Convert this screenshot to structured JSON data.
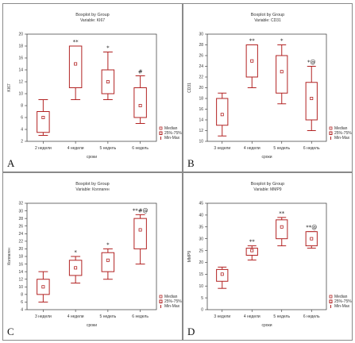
{
  "chart_data": [
    {
      "panel_letter": "A",
      "type": "box",
      "title": "Boxplot by Group",
      "subtitle": "Variable: KI67",
      "xlabel": "сроки",
      "ylabel": "KI67",
      "ylim": [
        2,
        20
      ],
      "yticks": [
        2,
        4,
        6,
        8,
        10,
        12,
        14,
        16,
        18,
        20
      ],
      "categories": [
        "2 недели",
        "4 недели",
        "5 недель",
        "6 недель"
      ],
      "boxes": [
        {
          "median": 6,
          "q1": 3.5,
          "q3": 7,
          "min": 3,
          "max": 9,
          "mark": ""
        },
        {
          "median": 15,
          "q1": 11,
          "q3": 18,
          "min": 9,
          "max": 18,
          "mark": "**"
        },
        {
          "median": 12,
          "q1": 10,
          "q3": 14,
          "min": 9,
          "max": 17,
          "mark": "*"
        },
        {
          "median": 8,
          "q1": 6,
          "q3": 11,
          "min": 5,
          "max": 13,
          "mark": "#"
        }
      ],
      "legend": [
        "Median",
        "25%-75%",
        "Min-Max"
      ]
    },
    {
      "panel_letter": "B",
      "type": "box",
      "title": "Boxplot by Group",
      "subtitle": "Variable: CD31",
      "xlabel": "сроки",
      "ylabel": "CD31",
      "ylim": [
        10,
        30
      ],
      "yticks": [
        10,
        12,
        14,
        16,
        18,
        20,
        22,
        24,
        26,
        28,
        30
      ],
      "categories": [
        "3 недели",
        "4 недели",
        "5 недель",
        "6 недель"
      ],
      "boxes": [
        {
          "median": 15,
          "q1": 13,
          "q3": 18,
          "min": 11,
          "max": 19,
          "mark": ""
        },
        {
          "median": 25,
          "q1": 22,
          "q3": 28,
          "min": 20,
          "max": 28,
          "mark": "**"
        },
        {
          "median": 23,
          "q1": 19,
          "q3": 26,
          "min": 17,
          "max": 28,
          "mark": "*"
        },
        {
          "median": 18,
          "q1": 14,
          "q3": 21,
          "min": 12,
          "max": 24,
          "mark": "*@"
        }
      ],
      "legend": [
        "Median",
        "25%-75%",
        "Min-Max"
      ]
    },
    {
      "panel_letter": "C",
      "type": "box",
      "title": "Boxplot by Group",
      "subtitle": "Variable: Коллаген",
      "xlabel": "сроки",
      "ylabel": "Коллаген",
      "ylim": [
        4,
        32
      ],
      "yticks": [
        4,
        6,
        8,
        10,
        12,
        14,
        16,
        18,
        20,
        22,
        24,
        26,
        28,
        30,
        32
      ],
      "categories": [
        "3 недели",
        "4 недели",
        "5 недель",
        "6 недель"
      ],
      "boxes": [
        {
          "median": 10,
          "q1": 8,
          "q3": 12,
          "min": 6,
          "max": 14,
          "mark": ""
        },
        {
          "median": 15,
          "q1": 13,
          "q3": 17,
          "min": 11,
          "max": 18,
          "mark": "*"
        },
        {
          "median": 17,
          "q1": 14,
          "q3": 19,
          "min": 12,
          "max": 20,
          "mark": "*"
        },
        {
          "median": 25,
          "q1": 20,
          "q3": 28,
          "min": 16,
          "max": 29,
          "mark": "**#@"
        }
      ],
      "legend": [
        "Median",
        "25%-75%",
        "Min-Max"
      ]
    },
    {
      "panel_letter": "D",
      "type": "box",
      "title": "Boxplot by Group",
      "subtitle": "Variable: MMP9",
      "xlabel": "сроки",
      "ylabel": "MMP9",
      "ylim": [
        0,
        45
      ],
      "yticks": [
        0,
        5,
        10,
        15,
        20,
        25,
        30,
        35,
        40,
        45
      ],
      "categories": [
        "3 недели",
        "4 недели",
        "5 недель",
        "6 недель"
      ],
      "boxes": [
        {
          "median": 15,
          "q1": 12,
          "q3": 17,
          "min": 9,
          "max": 18,
          "mark": ""
        },
        {
          "median": 25,
          "q1": 23,
          "q3": 26,
          "min": 21,
          "max": 27,
          "mark": "**"
        },
        {
          "median": 35,
          "q1": 30,
          "q3": 38,
          "min": 27,
          "max": 39,
          "mark": "**"
        },
        {
          "median": 30,
          "q1": 27,
          "q3": 33,
          "min": 26,
          "max": 33,
          "mark": "**@"
        }
      ],
      "legend": [
        "Median",
        "25%-75%",
        "Min-Max"
      ]
    }
  ]
}
